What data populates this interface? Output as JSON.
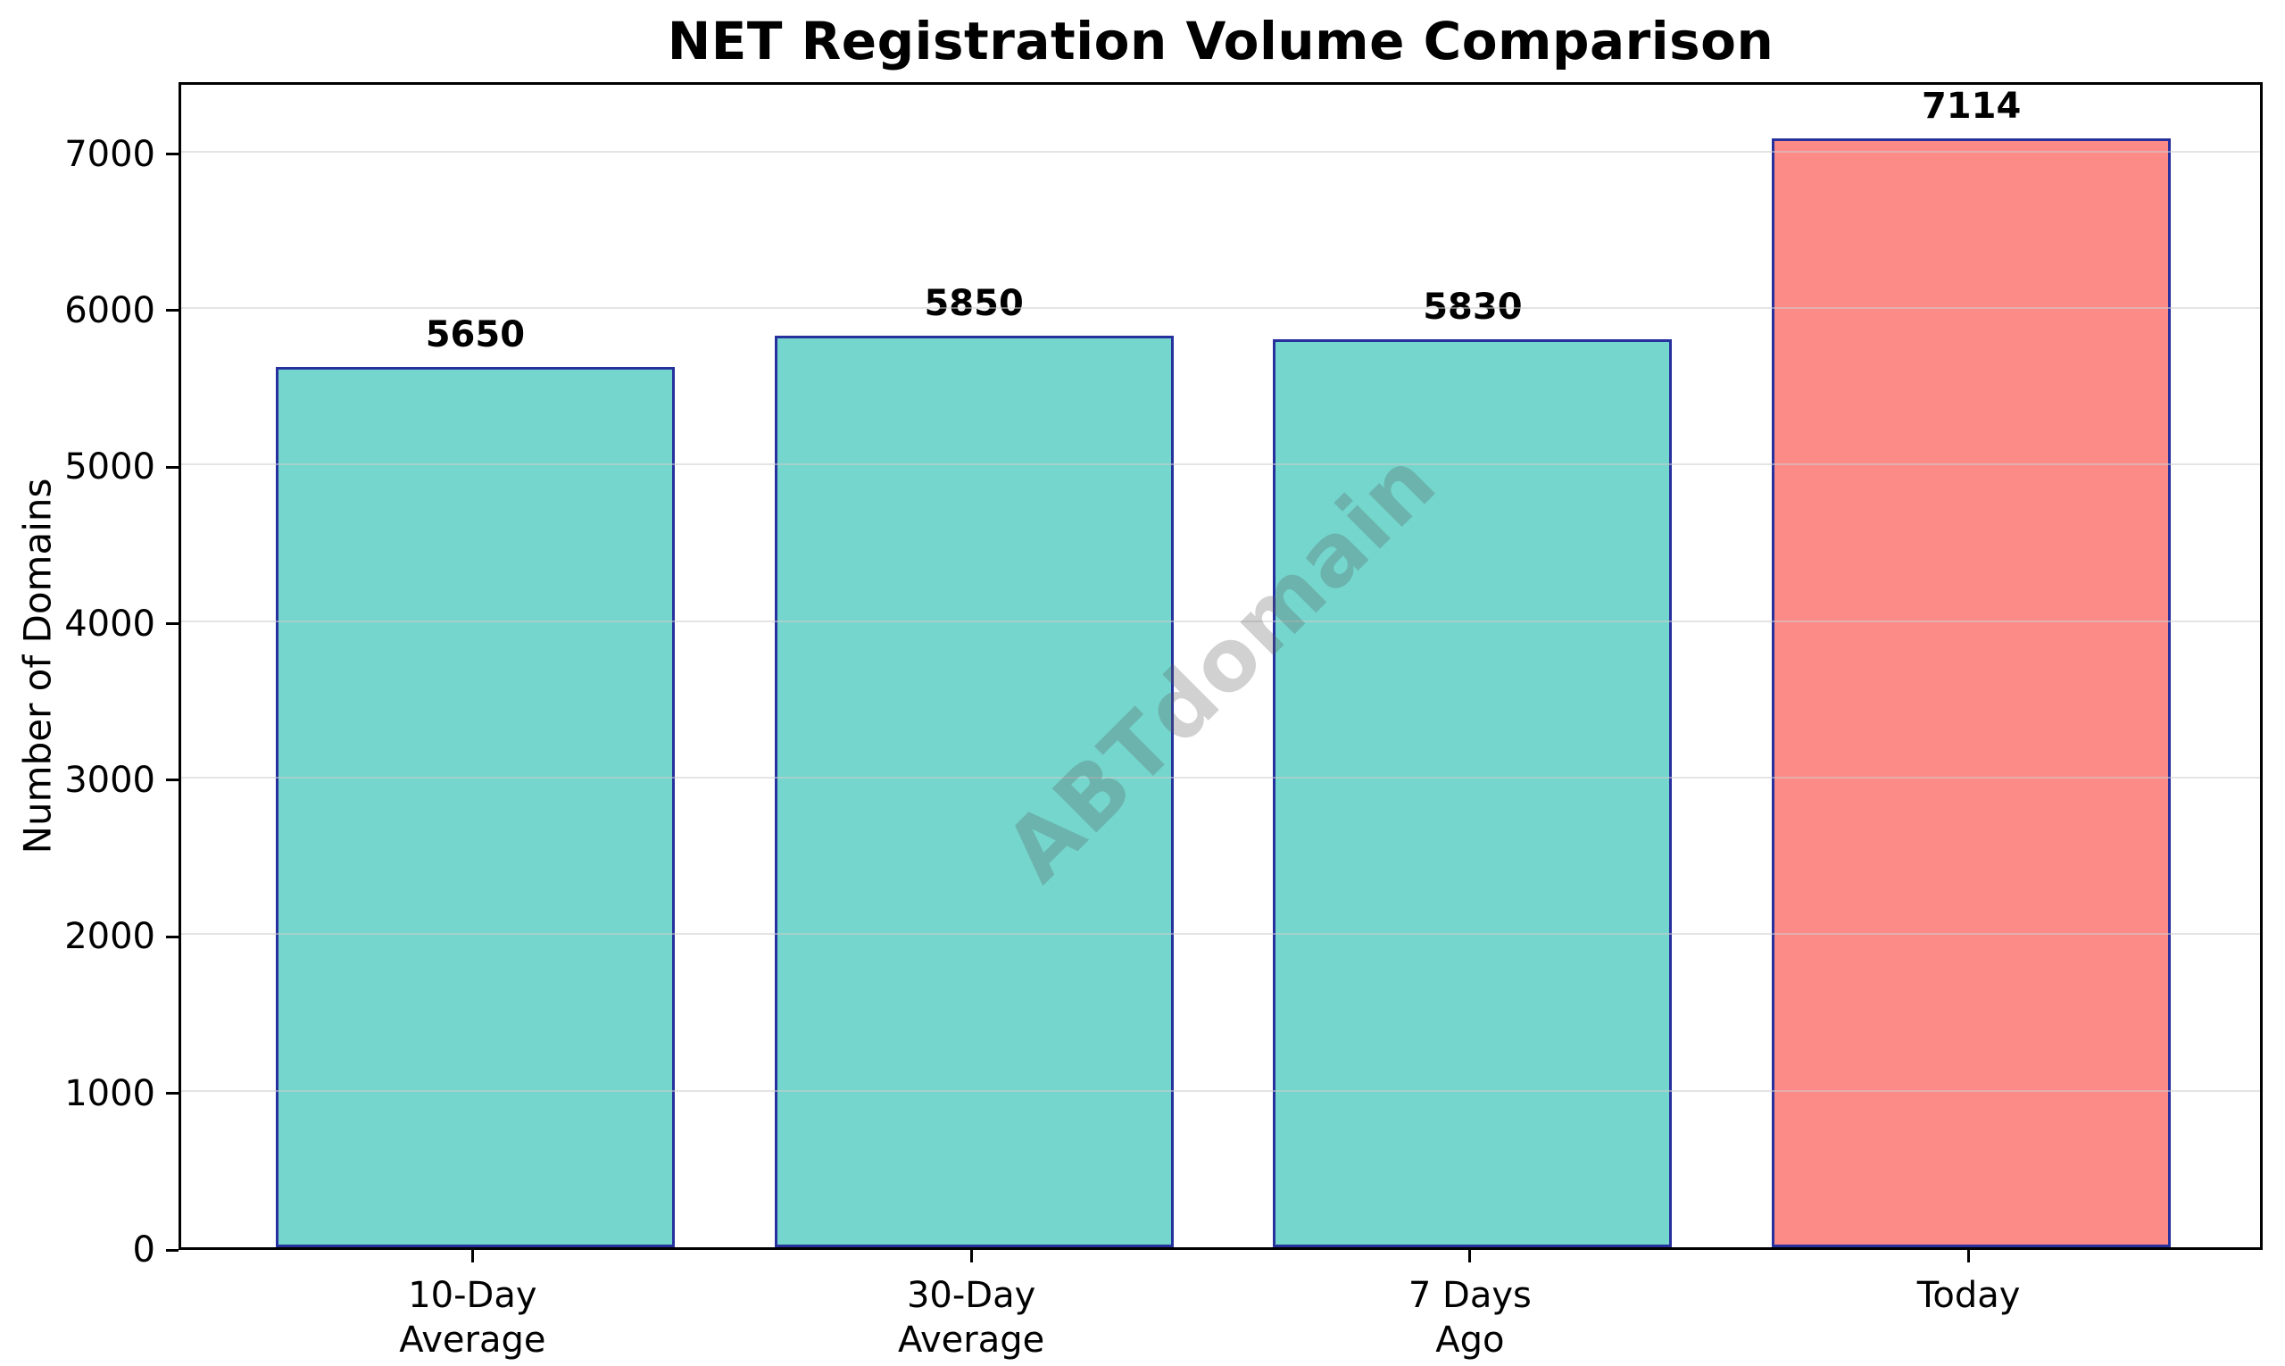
{
  "chart_data": {
    "type": "bar",
    "title": "NET Registration Volume Comparison",
    "ylabel": "Number of Domains",
    "xlabel": "",
    "categories": [
      "10-Day\nAverage",
      "30-Day\nAverage",
      "7 Days\nAgo",
      "Today"
    ],
    "values": [
      5650,
      5850,
      5830,
      7114
    ],
    "bar_labels": [
      "5650",
      "5850",
      "5830",
      "7114"
    ],
    "yticks": [
      0,
      1000,
      2000,
      3000,
      4000,
      5000,
      6000,
      7000
    ],
    "ylim": [
      0,
      7460
    ],
    "grid": "horizontal-light-over-bars",
    "legend": "none",
    "watermark": {
      "text": "ABTdomain",
      "rotation_deg": -45
    },
    "colors": {
      "bar_fill_default": "#74D6CD",
      "bar_fill_highlight": "#FC8B88",
      "bar_fills": [
        "#74D6CD",
        "#74D6CD",
        "#74D6CD",
        "#FC8B88"
      ],
      "bar_edge": "#27319E",
      "gridline": "#E6E6E6",
      "spine": "#000000",
      "text": "#000000",
      "watermark": "#B9B9B9"
    }
  }
}
